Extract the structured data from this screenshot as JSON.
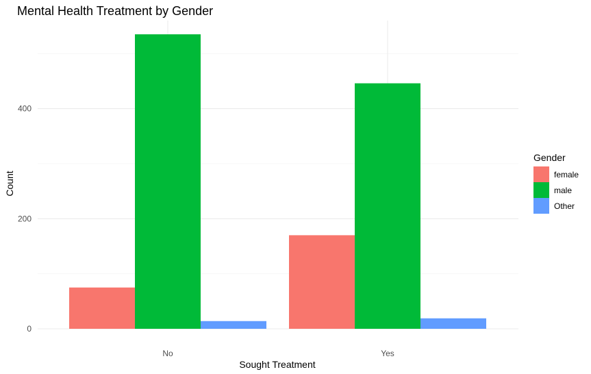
{
  "chart_data": {
    "type": "bar",
    "title": "Mental Health Treatment by Gender",
    "xlabel": "Sought Treatment",
    "ylabel": "Count",
    "categories": [
      "No",
      "Yes"
    ],
    "series": [
      {
        "name": "female",
        "values": [
          75,
          170
        ],
        "color": "#F8766D"
      },
      {
        "name": "male",
        "values": [
          535,
          446
        ],
        "color": "#00BA38"
      },
      {
        "name": "Other",
        "values": [
          14,
          19
        ],
        "color": "#619CFF"
      }
    ],
    "ylim": [
      0,
      560
    ],
    "yticks": [
      0,
      200,
      400
    ],
    "grid": true,
    "legend": {
      "title": "Gender",
      "placement": "right"
    }
  }
}
